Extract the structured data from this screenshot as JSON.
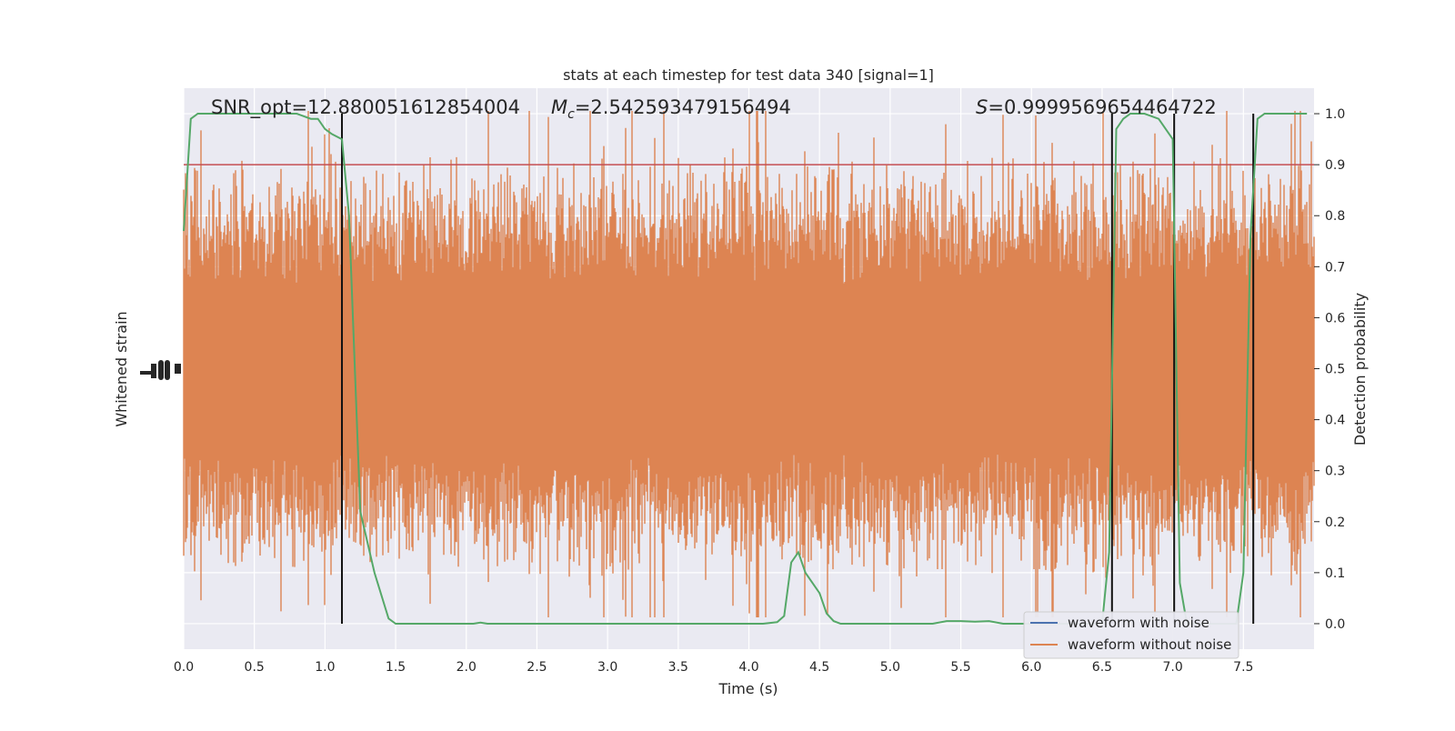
{
  "chart_data": {
    "type": "line",
    "title": "stats at each timestep for test data 340 [signal=1]",
    "xlabel": "Time (s)",
    "ylabel_left": "Whitened strain",
    "ylabel_right": "Detection probability",
    "xlim": [
      0.0,
      8.0
    ],
    "ylim_right": [
      -0.05,
      1.05
    ],
    "x_ticks": [
      "0.0",
      "0.5",
      "1.0",
      "1.5",
      "2.0",
      "2.5",
      "3.0",
      "3.5",
      "4.0",
      "4.5",
      "5.0",
      "5.5",
      "6.0",
      "6.5",
      "7.0",
      "7.5"
    ],
    "x_tick_values": [
      0,
      0.5,
      1,
      1.5,
      2,
      2.5,
      3,
      3.5,
      4,
      4.5,
      5,
      5.5,
      6,
      6.5,
      7,
      7.5
    ],
    "y_right_ticks": [
      "0.0",
      "0.1",
      "0.2",
      "0.3",
      "0.4",
      "0.5",
      "0.6",
      "0.7",
      "0.8",
      "0.9",
      "1.0"
    ],
    "y_right_tick_values": [
      0,
      0.1,
      0.2,
      0.3,
      0.4,
      0.5,
      0.6,
      0.7,
      0.8,
      0.9,
      1.0
    ],
    "annotations": {
      "snr": "SNR_opt=12.880051612854004",
      "mc_symbol": "M",
      "mc_sub": "c",
      "mc_value": "=2.542593479156494",
      "s_symbol": "S",
      "s_value": "=0.9999569654464722"
    },
    "threshold": 0.9,
    "vertical_lines": [
      1.12,
      6.57,
      7.01,
      7.57
    ],
    "legend": [
      "waveform with noise",
      "waveform without noise"
    ],
    "series": [
      {
        "name": "Detection probability",
        "color": "#55a868",
        "x": [
          0.0,
          0.05,
          0.1,
          0.2,
          0.3,
          0.4,
          0.5,
          0.6,
          0.7,
          0.8,
          0.9,
          0.95,
          1.0,
          1.05,
          1.12,
          1.17,
          1.25,
          1.35,
          1.45,
          1.5,
          1.6,
          1.7,
          1.8,
          1.9,
          2.0,
          2.05,
          2.1,
          2.15,
          2.2,
          2.3,
          2.4,
          2.5,
          2.6,
          2.7,
          2.8,
          2.9,
          3.0,
          3.1,
          3.2,
          3.3,
          3.4,
          3.5,
          3.6,
          3.7,
          3.8,
          3.9,
          4.0,
          4.1,
          4.2,
          4.25,
          4.3,
          4.35,
          4.4,
          4.45,
          4.5,
          4.55,
          4.6,
          4.65,
          4.7,
          4.75,
          4.8,
          4.9,
          5.0,
          5.1,
          5.2,
          5.3,
          5.4,
          5.5,
          5.6,
          5.7,
          5.8,
          5.9,
          6.0,
          6.1,
          6.2,
          6.3,
          6.4,
          6.5,
          6.55,
          6.6,
          6.65,
          6.7,
          6.8,
          6.9,
          6.95,
          7.0,
          7.05,
          7.1,
          7.15,
          7.2,
          7.25,
          7.3,
          7.35,
          7.4,
          7.45,
          7.5,
          7.55,
          7.6,
          7.65,
          7.7,
          7.8,
          7.9,
          7.95
        ],
        "y": [
          0.77,
          0.99,
          1.0,
          1.0,
          1.0,
          1.0,
          1.0,
          1.0,
          1.0,
          1.0,
          0.99,
          0.99,
          0.97,
          0.96,
          0.95,
          0.8,
          0.22,
          0.1,
          0.01,
          0.0,
          0.0,
          0.0,
          0.0,
          0.0,
          0.0,
          0.0,
          0.002,
          0.0,
          0.0,
          0.0,
          0.0,
          0.0,
          0.0,
          0.0,
          0.0,
          0.0,
          0.0,
          0.0,
          0.0,
          0.0,
          0.0,
          0.0,
          0.0,
          0.0,
          0.0,
          0.0,
          0.0,
          0.0,
          0.003,
          0.015,
          0.12,
          0.14,
          0.1,
          0.08,
          0.06,
          0.02,
          0.005,
          0.0,
          0.0,
          0.0,
          0.0,
          0.0,
          0.0,
          0.0,
          0.0,
          0.0,
          0.005,
          0.005,
          0.004,
          0.005,
          0.0,
          0.0,
          0.0,
          0.0,
          0.0,
          0.0,
          0.0,
          0.0,
          0.14,
          0.97,
          0.99,
          1.0,
          1.0,
          0.99,
          0.97,
          0.95,
          0.08,
          0.0,
          0.0,
          0.0,
          0.0,
          0.0,
          0.0,
          0.0,
          0.0,
          0.1,
          0.76,
          0.99,
          1.0,
          1.0,
          1.0,
          1.0,
          1.0
        ]
      }
    ]
  }
}
